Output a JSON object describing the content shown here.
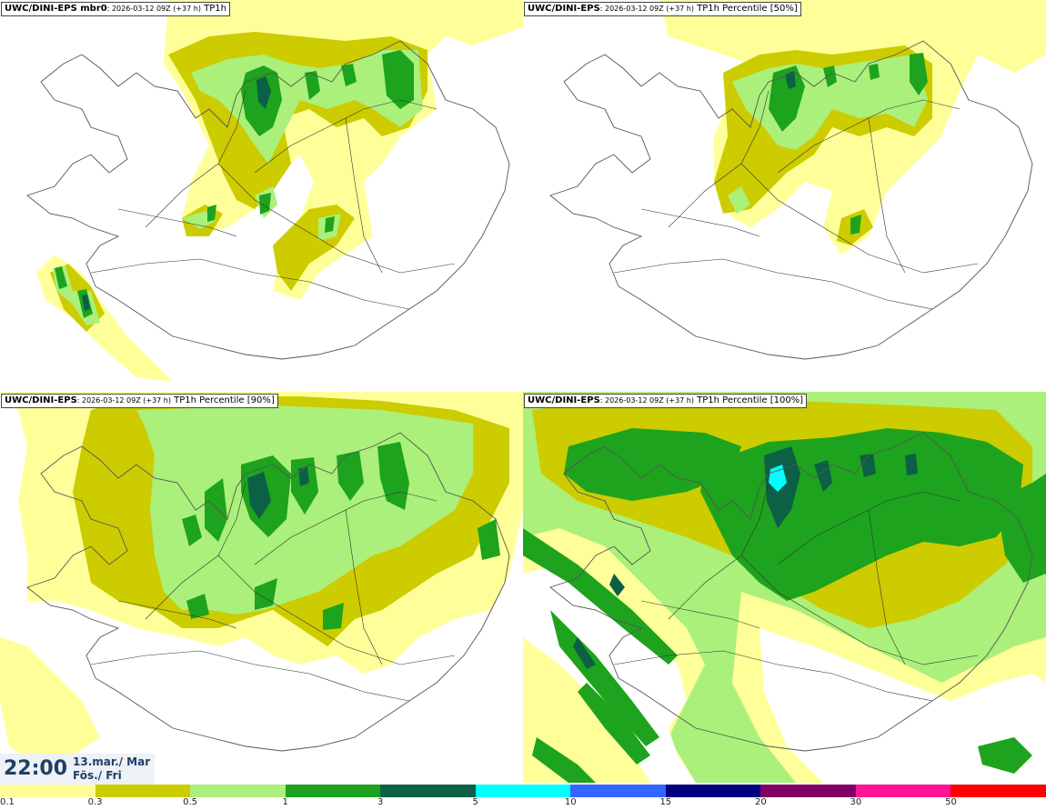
{
  "panels": [
    {
      "model": "UWC/DINI-EPS",
      "label_suffix": " mbr0",
      "run": ": 2026-03-12 09Z (+37 h)",
      "field": " TP1h"
    },
    {
      "model": "UWC/DINI-EPS",
      "label_suffix": "",
      "run": ": 2026-03-12 09Z (+37 h)",
      "field": " TP1h Percentile [50%]"
    },
    {
      "model": "UWC/DINI-EPS",
      "label_suffix": "",
      "run": ": 2026-03-12 09Z (+37 h)",
      "field": " TP1h Percentile [90%]"
    },
    {
      "model": "UWC/DINI-EPS",
      "label_suffix": "",
      "run": ": 2026-03-12 09Z (+37 h)",
      "field": " TP1h Percentile [100%]"
    }
  ],
  "valid_time": {
    "clock": "22:00",
    "date": "13.mar./ Mar",
    "day": "Fös./ Fri"
  },
  "legend": {
    "colors": [
      "#ffff99",
      "#cccc00",
      "#aaf07a",
      "#1ea31e",
      "#0b6045",
      "#00ffff",
      "#3366ff",
      "#000080",
      "#800066",
      "#ff1493",
      "#ff0000"
    ],
    "ticks": [
      "0.1",
      "0.3",
      "0.5",
      "1",
      "3",
      "5",
      "10",
      "15",
      "20",
      "30",
      "50"
    ]
  },
  "map_colors": {
    "coast": "#555555",
    "roads": "#333333"
  }
}
